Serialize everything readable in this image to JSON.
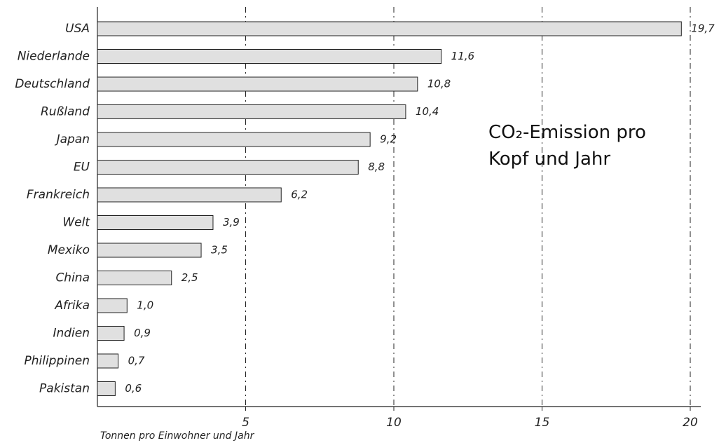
{
  "chart_data": {
    "type": "bar",
    "orientation": "horizontal",
    "title": "CO₂-Emission pro Kopf und Jahr",
    "x_label": "Tonnen pro Einwohner und Jahr",
    "categories": [
      "USA",
      "Niederlande",
      "Deutschland",
      "Rußland",
      "Japan",
      "EU",
      "Frankreich",
      "Welt",
      "Mexiko",
      "China",
      "Afrika",
      "Indien",
      "Philippinen",
      "Pakistan"
    ],
    "values": [
      19.7,
      11.6,
      10.8,
      10.4,
      9.2,
      8.8,
      6.2,
      3.9,
      3.5,
      2.5,
      1.0,
      0.9,
      0.7,
      0.6
    ],
    "value_labels": [
      "19,7",
      "11,6",
      "10,8",
      "10,4",
      "9,2",
      "8,8",
      "6,2",
      "3,9",
      "3,5",
      "2,5",
      "1,0",
      "0,9",
      "0,7",
      "0,6"
    ],
    "color": "#e0e0e0",
    "xlim": [
      0,
      20
    ],
    "xticks": [
      5,
      10,
      15,
      20
    ],
    "grid": true
  }
}
